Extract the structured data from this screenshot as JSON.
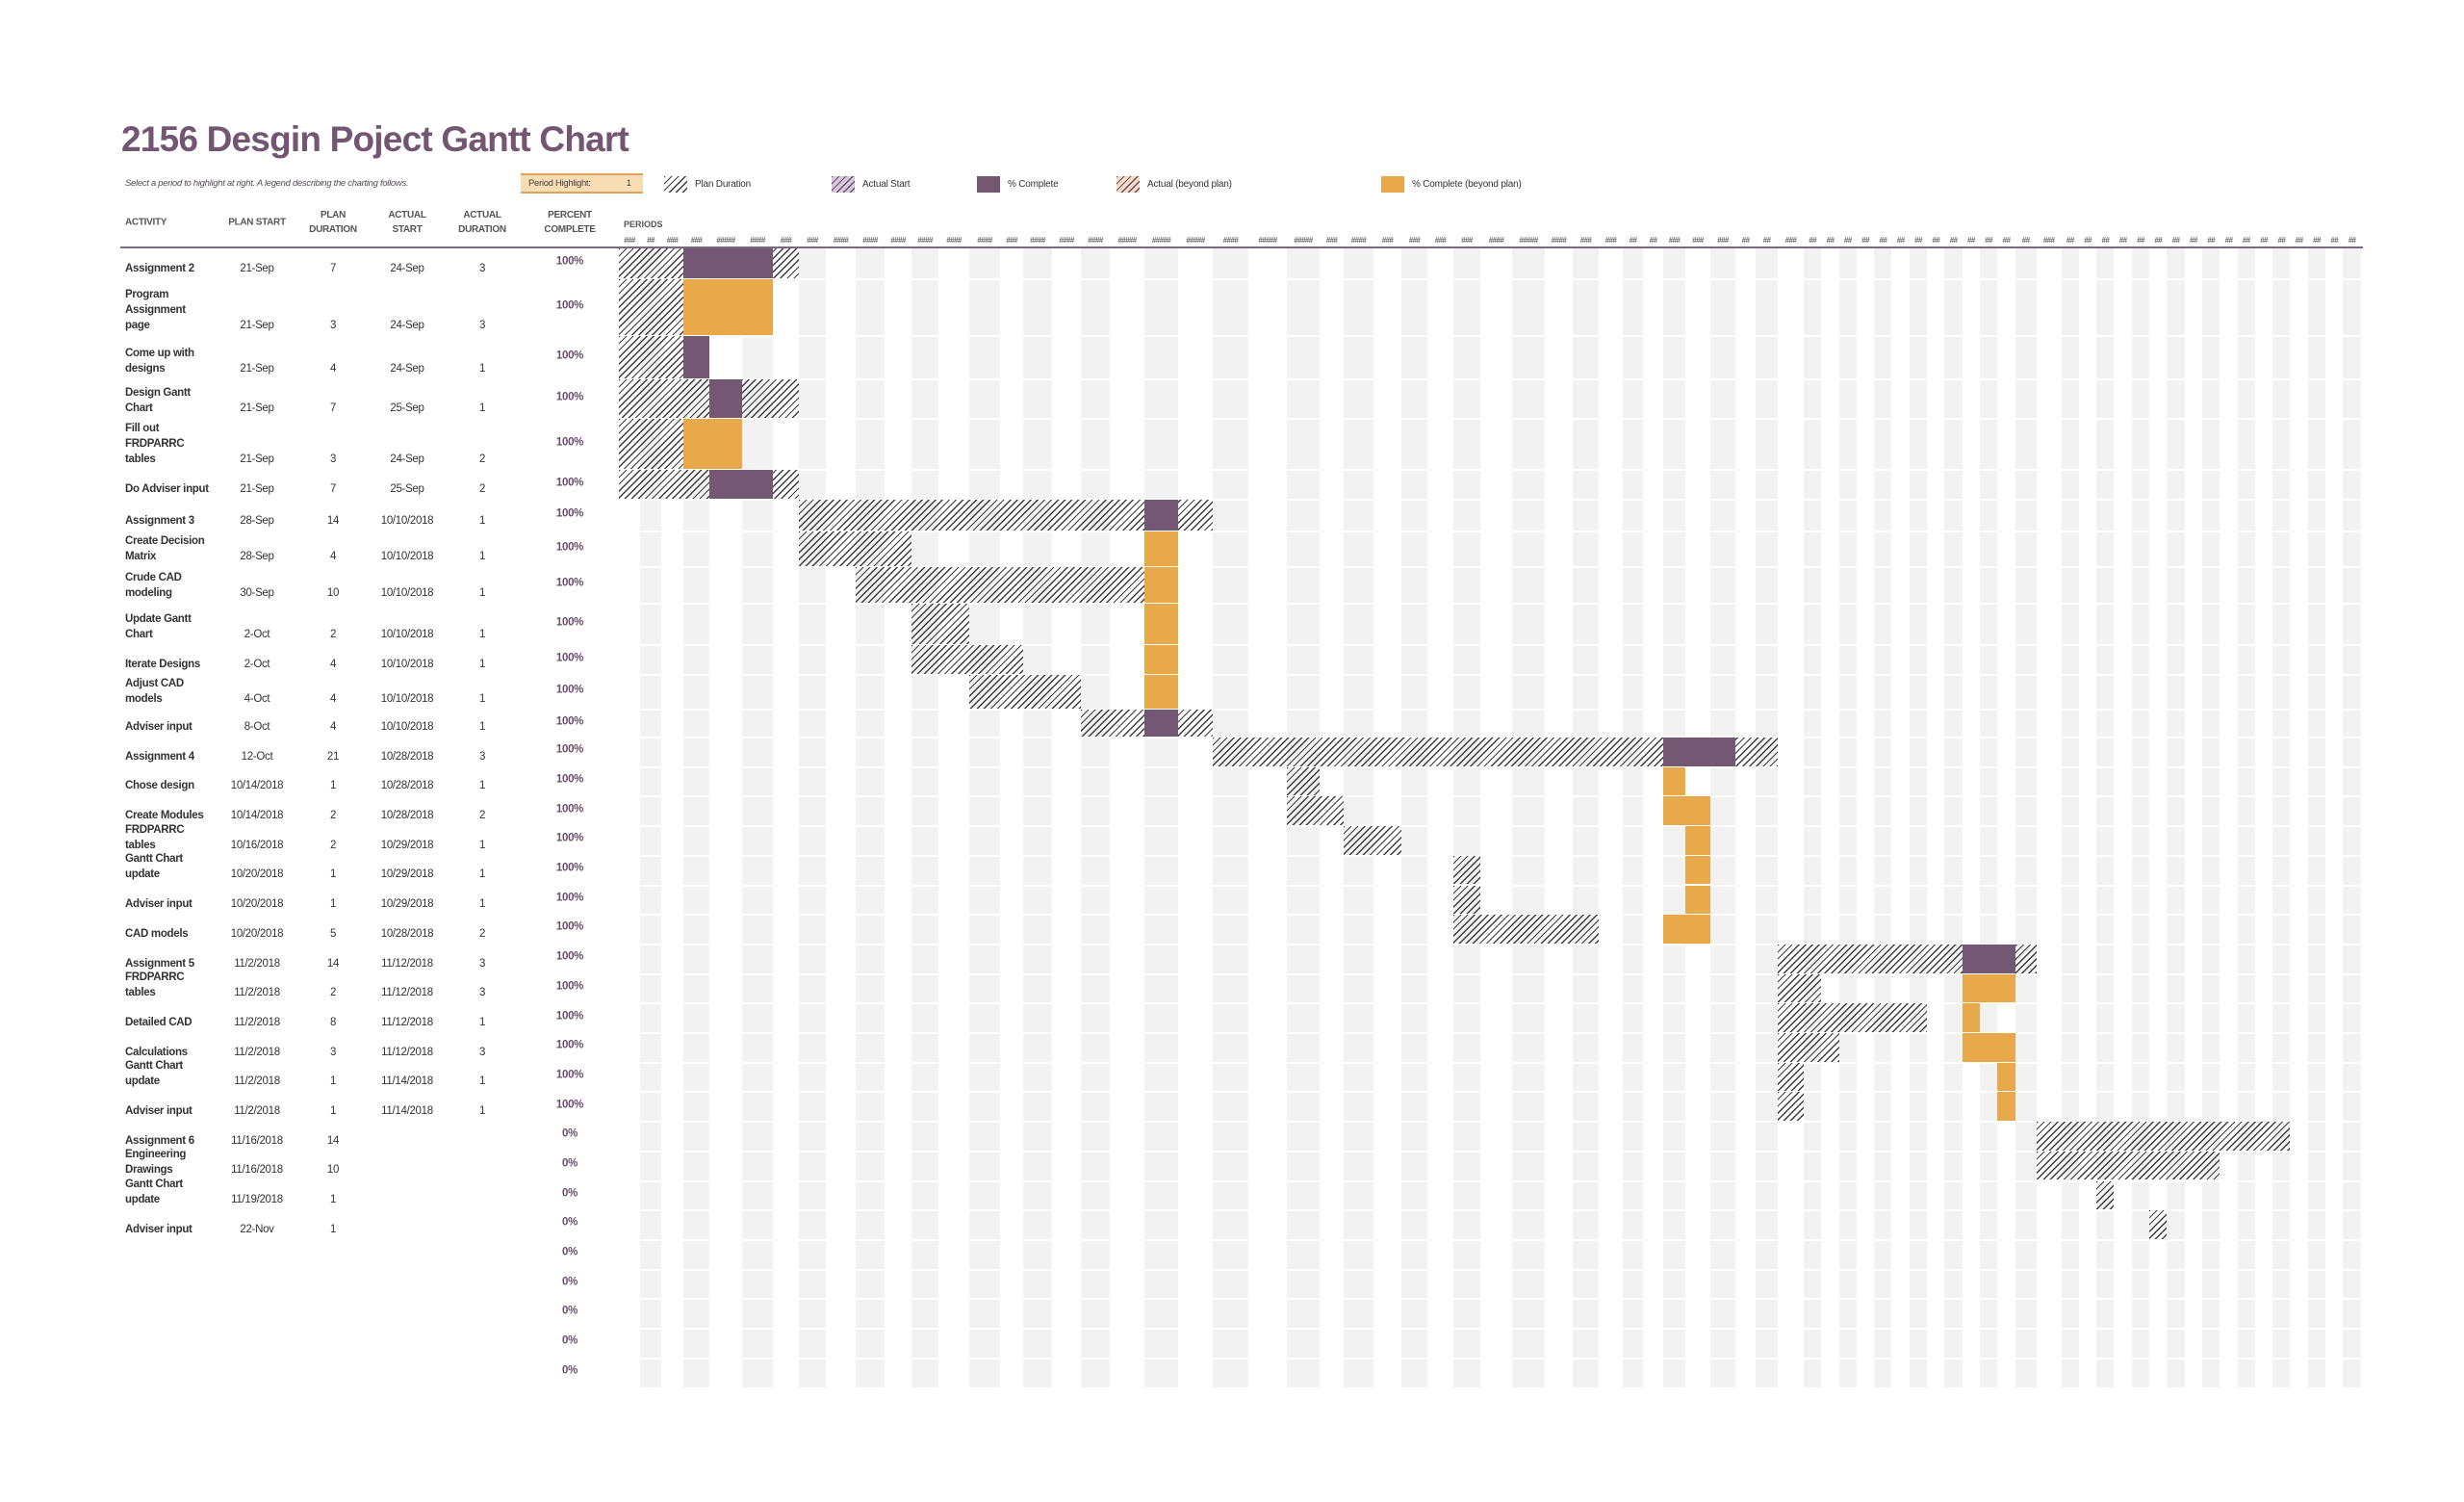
{
  "title": "2156 Desgin Poject Gantt Chart",
  "subtitle": "Select a period to highlight at right.  A legend describing the charting follows.",
  "period_highlight": {
    "label": "Period Highlight:",
    "value": "1"
  },
  "legend": [
    {
      "label": "Plan Duration",
      "icon": "plan-duration-hatch-icon"
    },
    {
      "label": "Actual Start",
      "icon": "actual-start-hatch-icon"
    },
    {
      "label": "% Complete",
      "icon": "percent-complete-swatch-icon"
    },
    {
      "label": "Actual (beyond plan)",
      "icon": "actual-beyond-plan-hatch-icon"
    },
    {
      "label": "% Complete (beyond plan)",
      "icon": "percent-complete-beyond-plan-swatch-icon"
    }
  ],
  "columns": {
    "activity": "ACTIVITY",
    "plan_start": "PLAN START",
    "plan_duration": "PLAN\nDURATION",
    "actual_start": "ACTUAL\nSTART",
    "actual_duration": "ACTUAL\nDURATION",
    "percent_complete": "PERCENT\nCOMPLETE",
    "periods": "PERIODS"
  },
  "colors": {
    "title": "#735672",
    "complete": "#745773",
    "complete_beyond_plan": "#e8a94b",
    "period_highlight": "#f7dcb4",
    "stripe": "#f2f2f2"
  },
  "chart_data": {
    "type": "gantt",
    "period_labels": [
      "###",
      "##",
      "###",
      "###",
      "#####",
      "####",
      "###",
      "###",
      "####",
      "####",
      "####",
      "####",
      "####",
      "####",
      "###",
      "####",
      "####",
      "####",
      "#####",
      "#####",
      "#####",
      "####",
      "#####",
      "#####",
      "###",
      "####",
      "###",
      "###",
      "###",
      "###",
      "####",
      "#####",
      "####",
      "###",
      "###",
      "##",
      "##",
      "###",
      "###",
      "###",
      "##",
      "##",
      "###",
      "##",
      "##",
      "##",
      "##",
      "##",
      "##",
      "##",
      "##",
      "##",
      "##",
      "##",
      "##",
      "##",
      "###",
      "##",
      "##",
      "##",
      "##",
      "##",
      "##",
      "##",
      "##",
      "##",
      "##",
      "##",
      "##",
      "##",
      "##",
      "##",
      "##",
      "##"
    ],
    "tasks": [
      {
        "activity": "Assignment 2",
        "plan_start": "21-Sep",
        "plan_duration": "7",
        "actual_start": "24-Sep",
        "actual_duration": "3",
        "percent": "100%"
      },
      {
        "activity": "Program\nAssignment\npage",
        "plan_start": "21-Sep",
        "plan_duration": "3",
        "actual_start": "24-Sep",
        "actual_duration": "3",
        "percent": "100%"
      },
      {
        "activity": "Come up with\ndesigns",
        "plan_start": "21-Sep",
        "plan_duration": "4",
        "actual_start": "24-Sep",
        "actual_duration": "1",
        "percent": "100%"
      },
      {
        "activity": "Design Gantt\nChart",
        "plan_start": "21-Sep",
        "plan_duration": "7",
        "actual_start": "25-Sep",
        "actual_duration": "1",
        "percent": "100%"
      },
      {
        "activity": "Fill out\nFRDPARRC\ntables",
        "plan_start": "21-Sep",
        "plan_duration": "3",
        "actual_start": "24-Sep",
        "actual_duration": "2",
        "percent": "100%"
      },
      {
        "activity": "Do Adviser input",
        "plan_start": "21-Sep",
        "plan_duration": "7",
        "actual_start": "25-Sep",
        "actual_duration": "2",
        "percent": "100%"
      },
      {
        "activity": "Assignment 3",
        "plan_start": "28-Sep",
        "plan_duration": "14",
        "actual_start": "10/10/2018",
        "actual_duration": "1",
        "percent": "100%"
      },
      {
        "activity": "Create Decision\nMatrix",
        "plan_start": "28-Sep",
        "plan_duration": "4",
        "actual_start": "10/10/2018",
        "actual_duration": "1",
        "percent": "100%"
      },
      {
        "activity": "Crude CAD\nmodeling",
        "plan_start": "30-Sep",
        "plan_duration": "10",
        "actual_start": "10/10/2018",
        "actual_duration": "1",
        "percent": "100%"
      },
      {
        "activity": "Update Gantt\nChart",
        "plan_start": "2-Oct",
        "plan_duration": "2",
        "actual_start": "10/10/2018",
        "actual_duration": "1",
        "percent": "100%"
      },
      {
        "activity": "Iterate Designs",
        "plan_start": "2-Oct",
        "plan_duration": "4",
        "actual_start": "10/10/2018",
        "actual_duration": "1",
        "percent": "100%"
      },
      {
        "activity": "Adjust CAD\nmodels",
        "plan_start": "4-Oct",
        "plan_duration": "4",
        "actual_start": "10/10/2018",
        "actual_duration": "1",
        "percent": "100%"
      },
      {
        "activity": "Adviser input",
        "plan_start": "8-Oct",
        "plan_duration": "4",
        "actual_start": "10/10/2018",
        "actual_duration": "1",
        "percent": "100%"
      },
      {
        "activity": "Assignment 4",
        "plan_start": "12-Oct",
        "plan_duration": "21",
        "actual_start": "10/28/2018",
        "actual_duration": "3",
        "percent": "100%"
      },
      {
        "activity": "Chose design",
        "plan_start": "10/14/2018",
        "plan_duration": "1",
        "actual_start": "10/28/2018",
        "actual_duration": "1",
        "percent": "100%"
      },
      {
        "activity": "Create Modules",
        "plan_start": "10/14/2018",
        "plan_duration": "2",
        "actual_start": "10/28/2018",
        "actual_duration": "2",
        "percent": "100%"
      },
      {
        "activity": "FRDPARRC\ntables",
        "plan_start": "10/16/2018",
        "plan_duration": "2",
        "actual_start": "10/29/2018",
        "actual_duration": "1",
        "percent": "100%"
      },
      {
        "activity": "Gantt Chart\nupdate",
        "plan_start": "10/20/2018",
        "plan_duration": "1",
        "actual_start": "10/29/2018",
        "actual_duration": "1",
        "percent": "100%"
      },
      {
        "activity": "Adviser input",
        "plan_start": "10/20/2018",
        "plan_duration": "1",
        "actual_start": "10/29/2018",
        "actual_duration": "1",
        "percent": "100%"
      },
      {
        "activity": "CAD models",
        "plan_start": "10/20/2018",
        "plan_duration": "5",
        "actual_start": "10/28/2018",
        "actual_duration": "2",
        "percent": "100%"
      },
      {
        "activity": "Assignment 5",
        "plan_start": "11/2/2018",
        "plan_duration": "14",
        "actual_start": "11/12/2018",
        "actual_duration": "3",
        "percent": "100%"
      },
      {
        "activity": "FRDPARRC\ntables",
        "plan_start": "11/2/2018",
        "plan_duration": "2",
        "actual_start": "11/12/2018",
        "actual_duration": "3",
        "percent": "100%"
      },
      {
        "activity": "Detailed CAD",
        "plan_start": "11/2/2018",
        "plan_duration": "8",
        "actual_start": "11/12/2018",
        "actual_duration": "1",
        "percent": "100%"
      },
      {
        "activity": "Calculations",
        "plan_start": "11/2/2018",
        "plan_duration": "3",
        "actual_start": "11/12/2018",
        "actual_duration": "3",
        "percent": "100%"
      },
      {
        "activity": "Gantt Chart\nupdate",
        "plan_start": "11/2/2018",
        "plan_duration": "1",
        "actual_start": "11/14/2018",
        "actual_duration": "1",
        "percent": "100%"
      },
      {
        "activity": "Adviser input",
        "plan_start": "11/2/2018",
        "plan_duration": "1",
        "actual_start": "11/14/2018",
        "actual_duration": "1",
        "percent": "100%"
      },
      {
        "activity": "Assignment 6",
        "plan_start": "11/16/2018",
        "plan_duration": "14",
        "actual_start": "",
        "actual_duration": "",
        "percent": "0%"
      },
      {
        "activity": "Engineering\nDrawings",
        "plan_start": "11/16/2018",
        "plan_duration": "10",
        "actual_start": "",
        "actual_duration": "",
        "percent": "0%"
      },
      {
        "activity": "Gantt Chart\nupdate",
        "plan_start": "11/19/2018",
        "plan_duration": "1",
        "actual_start": "",
        "actual_duration": "",
        "percent": "0%"
      },
      {
        "activity": "Adviser input",
        "plan_start": "22-Nov",
        "plan_duration": "1",
        "actual_start": "",
        "actual_duration": "",
        "percent": "0%"
      },
      {
        "activity": "",
        "plan_start": "",
        "plan_duration": "",
        "actual_start": "",
        "actual_duration": "",
        "percent": "0%"
      },
      {
        "activity": "",
        "plan_start": "",
        "plan_duration": "",
        "actual_start": "",
        "actual_duration": "",
        "percent": "0%"
      },
      {
        "activity": "",
        "plan_start": "",
        "plan_duration": "",
        "actual_start": "",
        "actual_duration": "",
        "percent": "0%"
      },
      {
        "activity": "",
        "plan_start": "",
        "plan_duration": "",
        "actual_start": "",
        "actual_duration": "",
        "percent": "0%"
      },
      {
        "activity": "",
        "plan_start": "",
        "plan_duration": "",
        "actual_start": "",
        "actual_duration": "",
        "percent": "0%"
      }
    ]
  }
}
